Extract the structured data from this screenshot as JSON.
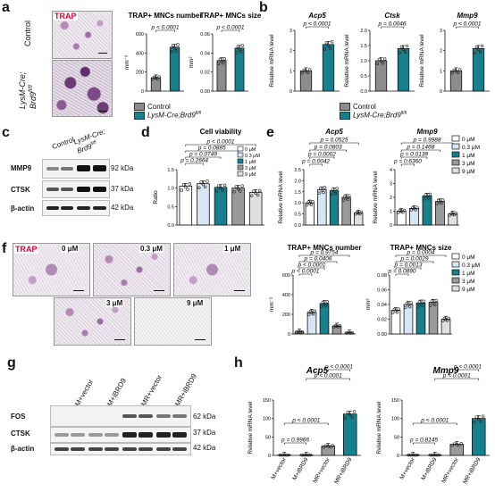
{
  "panels": {
    "a": {
      "letter": "a",
      "trap_label": "TRAP",
      "row_control": "Control",
      "row_lysm": "LysM-Cre;",
      "row_brd9": "Brd9",
      "row_brd9_sup": "fl/fl",
      "legend_control": "Control",
      "legend_lysm": "LysM-Cre;Brd9",
      "legend_sup": "fl/fl"
    },
    "b": {
      "letter": "b"
    },
    "c": {
      "letter": "c",
      "col_control": "Control",
      "col_lysm": "LysM-Cre;",
      "col_brd9": "Brd9",
      "col_sup": "fl/fl",
      "rows": [
        "MMP9",
        "CTSK",
        "β-actin"
      ],
      "kda": [
        "92 kDa",
        "37 kDa",
        "42 kDa"
      ]
    },
    "d": {
      "letter": "d"
    },
    "e": {
      "letter": "e"
    },
    "f": {
      "letter": "f",
      "trap_label": "TRAP",
      "doses": [
        "0 μM",
        "0.3 μM",
        "1 μM",
        "3 μM",
        "9 μM"
      ]
    },
    "g": {
      "letter": "g",
      "lanes": [
        "M+vector",
        "M+iBRD9",
        "MR+vector",
        "MR+iBRD9"
      ],
      "rows": [
        "FOS",
        "CTSK",
        "β-actin"
      ],
      "kda": [
        "62 kDa",
        "37 kDa",
        "42 kDa"
      ]
    },
    "h": {
      "letter": "h"
    }
  },
  "chart_data": [
    {
      "id": "a1",
      "type": "bar",
      "title": "TRAP+ MNCs number",
      "ylabel": "mm⁻²",
      "categories": [
        "Control",
        "LysM-Cre;Brd9fl/fl"
      ],
      "values": [
        140,
        460
      ],
      "ylim": [
        0,
        600
      ],
      "yticks": [
        0,
        200,
        400,
        600
      ],
      "annotations": [
        "p < 0.0001"
      ],
      "colors": [
        "#8c8c8c",
        "#17808c"
      ]
    },
    {
      "id": "a2",
      "type": "bar",
      "title": "TRAP+ MNCs size",
      "ylabel": "mm²",
      "categories": [
        "Control",
        "LysM-Cre;Brd9fl/fl"
      ],
      "values": [
        0.032,
        0.045
      ],
      "ylim": [
        0,
        0.06
      ],
      "yticks": [
        0,
        0.02,
        0.04,
        0.06
      ],
      "annotations": [
        "p < 0.0001"
      ],
      "colors": [
        "#8c8c8c",
        "#17808c"
      ]
    },
    {
      "id": "b1",
      "type": "bar",
      "title": "Acp5",
      "ylabel": "Relative mRNA level",
      "categories": [
        "Control",
        "LysM-Cre;Brd9fl/fl"
      ],
      "values": [
        1.0,
        2.3
      ],
      "ylim": [
        0,
        3
      ],
      "yticks": [
        0,
        1,
        2,
        3
      ],
      "annotations": [
        "p < 0.0001"
      ],
      "colors": [
        "#8c8c8c",
        "#17808c"
      ]
    },
    {
      "id": "b2",
      "type": "bar",
      "title": "Ctsk",
      "ylabel": "Relative mRNA level",
      "categories": [
        "Control",
        "LysM-Cre;Brd9fl/fl"
      ],
      "values": [
        1.0,
        1.4
      ],
      "ylim": [
        0,
        2
      ],
      "yticks": [
        0.0,
        0.5,
        1.0,
        1.5,
        2.0
      ],
      "annotations": [
        "p = 0.0046"
      ],
      "colors": [
        "#8c8c8c",
        "#17808c"
      ]
    },
    {
      "id": "b3",
      "type": "bar",
      "title": "Mmp9",
      "ylabel": "Relative mRNA level",
      "categories": [
        "Control",
        "LysM-Cre;Brd9fl/fl"
      ],
      "values": [
        1.0,
        2.1
      ],
      "ylim": [
        0,
        3
      ],
      "yticks": [
        0,
        1,
        2,
        3
      ],
      "annotations": [
        "p < 0.0001"
      ],
      "colors": [
        "#8c8c8c",
        "#17808c"
      ]
    },
    {
      "id": "d1",
      "type": "bar",
      "title": "Cell viability",
      "ylabel": "Ratio",
      "categories": [
        "0 μM",
        "0.3 μM",
        "1 μM",
        "3 μM",
        "9 μM"
      ],
      "values": [
        1.05,
        1.12,
        1.02,
        1.0,
        0.88
      ],
      "ylim": [
        0,
        1.5
      ],
      "yticks": [
        0.0,
        0.5,
        1.0,
        1.5
      ],
      "annotations": [
        "p < 0.0001",
        "p = 0.0885",
        "p = 0.0749",
        "p = 0.2664"
      ],
      "colors": [
        "#ffffff",
        "#d7e6f7",
        "#17808c",
        "#9a9a9a",
        "#e0e0e0"
      ]
    },
    {
      "id": "e1",
      "type": "bar",
      "title": "Acp5",
      "ylabel": "Relative mRNA level",
      "categories": [
        "0 μM",
        "0.3 μM",
        "1 μM",
        "3 μM",
        "9 μM"
      ],
      "values": [
        1.0,
        1.6,
        1.55,
        1.25,
        0.55
      ],
      "ylim": [
        0,
        2.5
      ],
      "yticks": [
        0.0,
        0.5,
        1.0,
        1.5,
        2.0,
        2.5
      ],
      "annotations": [
        "p = 0.0525",
        "p = 0.0803",
        "p = 0.0002",
        "p = 0.0042"
      ],
      "colors": [
        "#ffffff",
        "#d7e6f7",
        "#17808c",
        "#9a9a9a",
        "#e0e0e0"
      ]
    },
    {
      "id": "e2",
      "type": "bar",
      "title": "Mmp9",
      "ylabel": "Relative mRNA level",
      "categories": [
        "0 μM",
        "0.3 μM",
        "1 μM",
        "3 μM",
        "9 μM"
      ],
      "values": [
        1.0,
        1.2,
        2.1,
        1.7,
        0.8
      ],
      "ylim": [
        0,
        4
      ],
      "yticks": [
        0,
        1,
        2,
        3,
        4
      ],
      "annotations": [
        "p = 0.9988",
        "p = 0.1468",
        "p = 0.0139",
        "p = 0.6360"
      ],
      "colors": [
        "#ffffff",
        "#d7e6f7",
        "#17808c",
        "#9a9a9a",
        "#e0e0e0"
      ]
    },
    {
      "id": "e_legend",
      "type": "legend",
      "series": [
        {
          "name": "0 μM"
        },
        {
          "name": "0.3 μM"
        },
        {
          "name": "1 μM"
        },
        {
          "name": "3 μM"
        },
        {
          "name": "9 μM"
        }
      ]
    },
    {
      "id": "f1",
      "type": "bar",
      "title": "TRAP+ MNCs number",
      "ylabel": "mm⁻²",
      "categories": [
        "0 μM",
        "0.3 μM",
        "1 μM",
        "3 μM",
        "9 μM"
      ],
      "values": [
        20,
        220,
        310,
        80,
        10
      ],
      "ylim": [
        0,
        600
      ],
      "yticks": [
        0,
        200,
        400,
        600
      ],
      "annotations": [
        "p = 0.9754",
        "p = 0.0406",
        "p < 0.0001",
        "p < 0.0001"
      ],
      "colors": [
        "#ffffff",
        "#d7e6f7",
        "#17808c",
        "#9a9a9a",
        "#e0e0e0"
      ]
    },
    {
      "id": "f2",
      "type": "bar",
      "title": "TRAP+ MNCs size",
      "ylabel": "mm²",
      "categories": [
        "0 μM",
        "0.3 μM",
        "1 μM",
        "3 μM",
        "9 μM"
      ],
      "values": [
        0.032,
        0.04,
        0.042,
        0.043,
        0.02
      ],
      "ylim": [
        0,
        0.08
      ],
      "yticks": [
        0.0,
        0.02,
        0.04,
        0.06,
        0.08
      ],
      "annotations": [
        "p = 0.0004",
        "p = 0.0029",
        "p = 0.0013",
        "p = 0.0890"
      ],
      "colors": [
        "#ffffff",
        "#d7e6f7",
        "#17808c",
        "#9a9a9a",
        "#e0e0e0"
      ]
    },
    {
      "id": "h1",
      "type": "bar",
      "title": "Acp5",
      "ylabel": "Relative mRNA level",
      "categories": [
        "M+vector",
        "M+iBRD9",
        "MR+vector",
        "MR+iBRD9"
      ],
      "values": [
        1,
        1,
        25,
        112
      ],
      "ylim": [
        0,
        150
      ],
      "yticks": [
        0,
        50,
        100,
        150
      ],
      "annotations": [
        "p < 0.0001",
        "p < 0.0001",
        "p < 0.0001",
        "p = 0.9966"
      ],
      "colors": [
        "#ffffff",
        "#d7e6f7",
        "#9a9a9a",
        "#17808c"
      ]
    },
    {
      "id": "h2",
      "type": "bar",
      "title": "Mmp9",
      "ylabel": "Relative mRNA level",
      "categories": [
        "M+vector",
        "M+iBRD9",
        "MR+vector",
        "MR+iBRD9"
      ],
      "values": [
        1,
        1,
        30,
        100
      ],
      "ylim": [
        0,
        150
      ],
      "yticks": [
        0,
        50,
        100,
        150
      ],
      "annotations": [
        "p < 0.0001",
        "p < 0.0001",
        "p < 0.0001",
        "p = 0.8145"
      ],
      "colors": [
        "#ffffff",
        "#d7e6f7",
        "#9a9a9a",
        "#17808c"
      ]
    }
  ]
}
